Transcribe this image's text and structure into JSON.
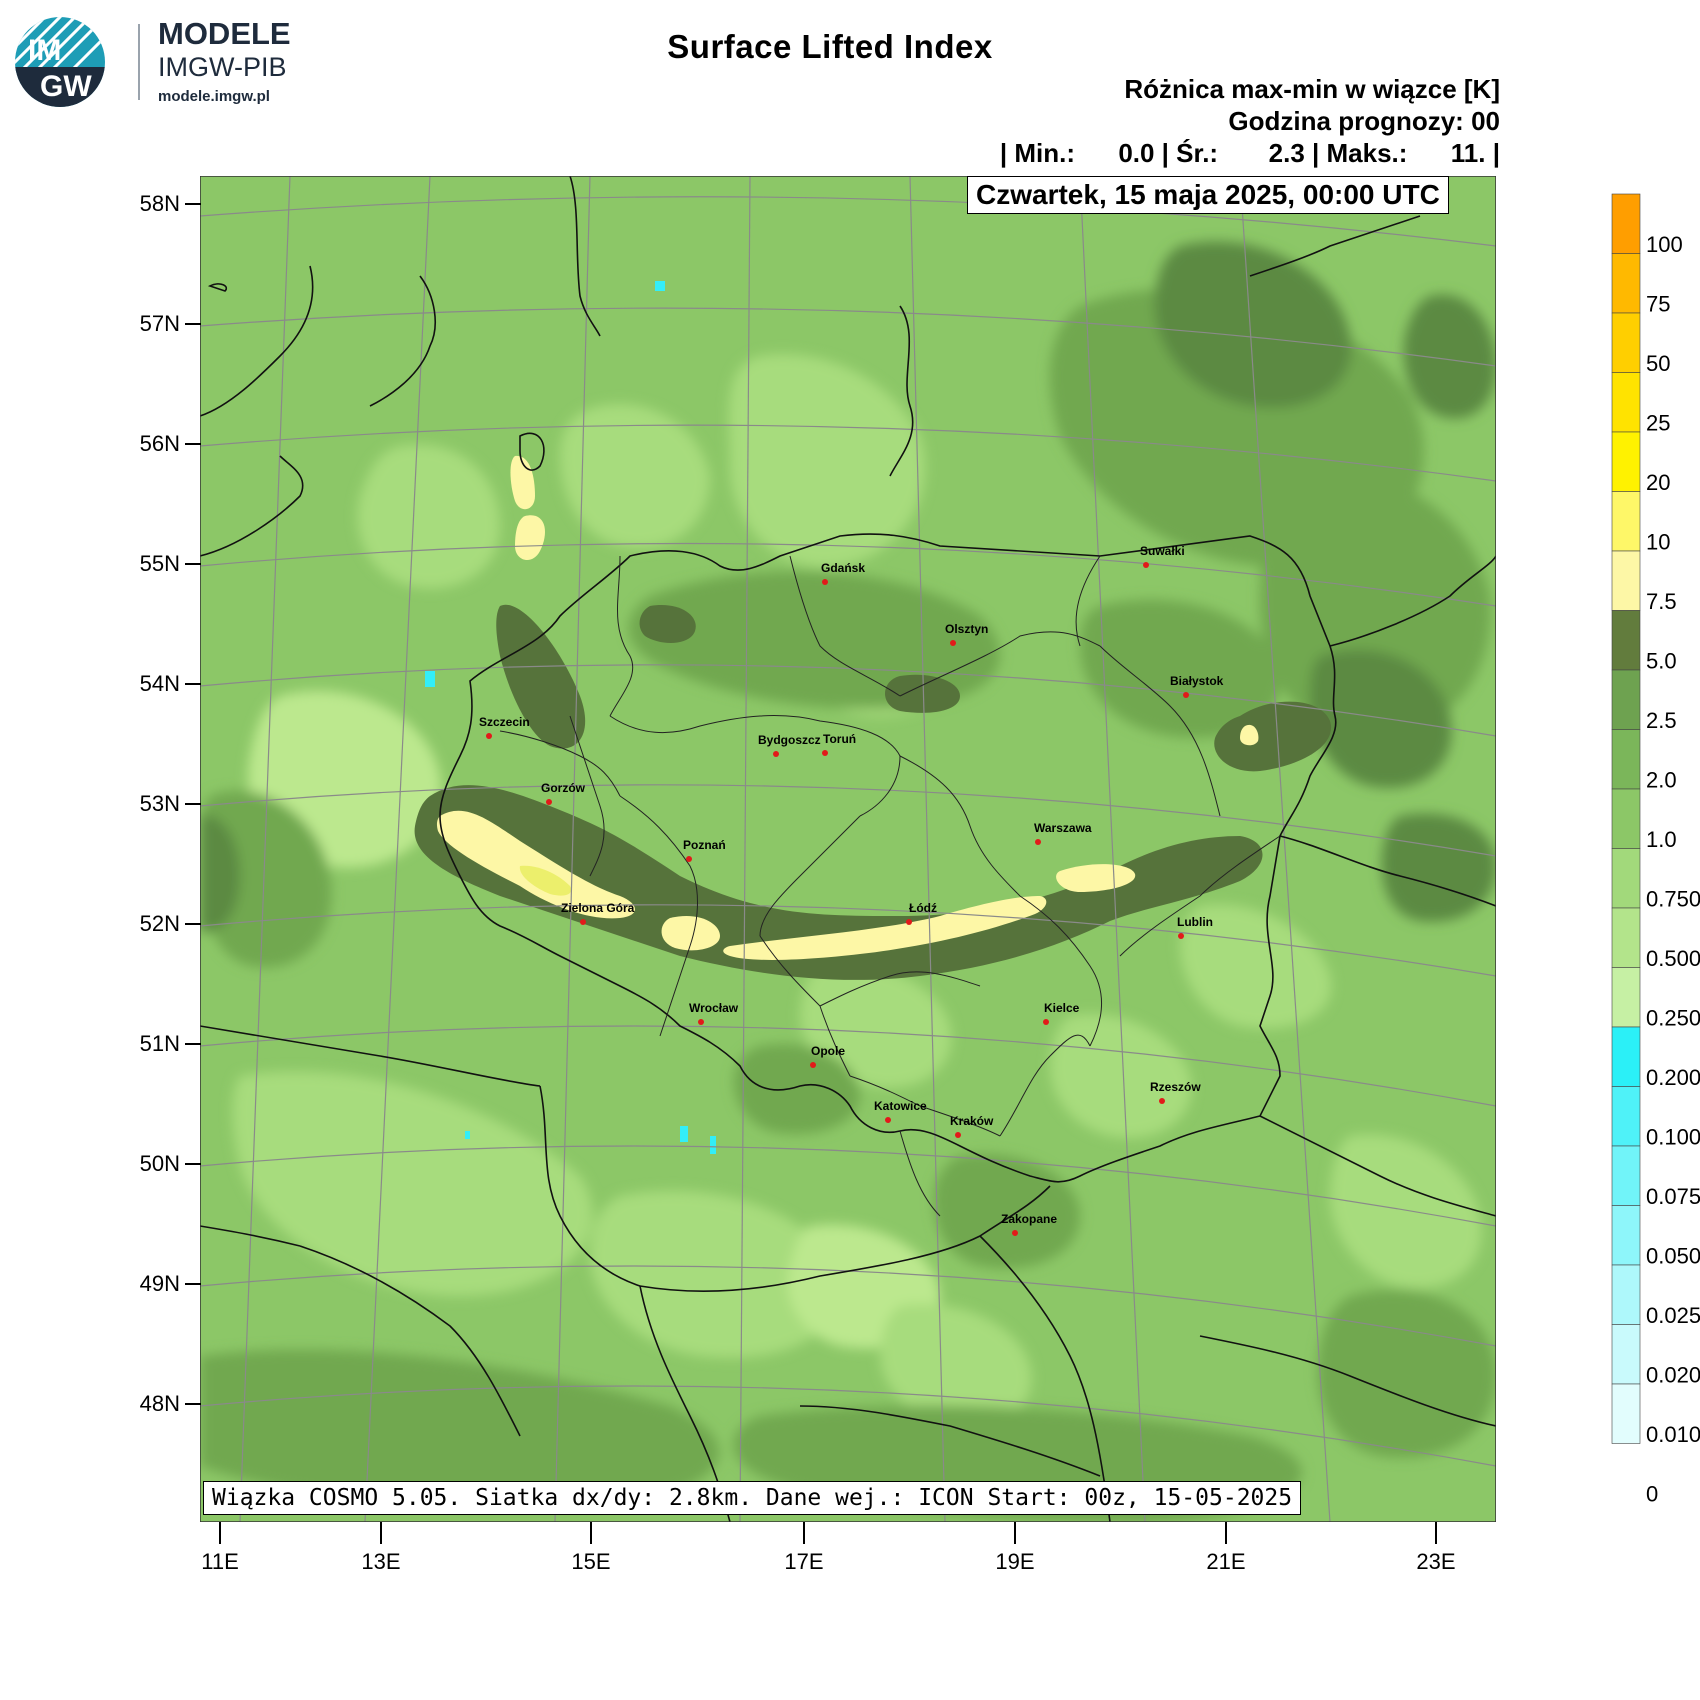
{
  "header": {
    "brand": "MODELE",
    "org": "IMGW-PIB",
    "url": "modele.imgw.pl",
    "logo_text_top": "IM",
    "logo_text_bottom": "GW"
  },
  "title": "Surface Lifted Index",
  "subtitle_line1": "Różnica max-min w wiązce [K]",
  "subtitle_line2": "Godzina prognozy: 00",
  "stats_line": "| Min.:      0.0 | Śr.:       2.3 | Maks.:      11. |",
  "date_label": "Czwartek, 15 maja 2025, 00:00 UTC",
  "footer_note": "Wiązka COSMO 5.05. Siatka dx/dy: 2.8km. Dane wej.: ICON Start: 00z, 15-05-2025",
  "map": {
    "lat_ticks": [
      "58N",
      "57N",
      "56N",
      "55N",
      "54N",
      "53N",
      "52N",
      "51N",
      "50N",
      "49N",
      "48N"
    ],
    "lon_ticks": [
      "11E",
      "13E",
      "15E",
      "17E",
      "19E",
      "21E",
      "23E"
    ],
    "cities": [
      {
        "name": "Gdańsk"
      },
      {
        "name": "Suwałki"
      },
      {
        "name": "Olsztyn"
      },
      {
        "name": "Białystok"
      },
      {
        "name": "Szczecin"
      },
      {
        "name": "Bydgoszcz"
      },
      {
        "name": "Toruń"
      },
      {
        "name": "Gorzów"
      },
      {
        "name": "Warszawa"
      },
      {
        "name": "Poznań"
      },
      {
        "name": "Zielona Góra"
      },
      {
        "name": "Łódź"
      },
      {
        "name": "Lublin"
      },
      {
        "name": "Wrocław"
      },
      {
        "name": "Kielce"
      },
      {
        "name": "Opole"
      },
      {
        "name": "Rzeszów"
      },
      {
        "name": "Katowice"
      },
      {
        "name": "Kraków"
      },
      {
        "name": "Zakopane"
      }
    ],
    "colors": {
      "base": "#8cc767",
      "light": "#a7dc7d",
      "lighter": "#bce88e",
      "medium": "#71a84f",
      "dark": "#5c8a43",
      "darkest": "#56733b",
      "cream": "#fdf7a6",
      "yellow": "#ecef6c",
      "cyan": "#33eef8",
      "city_dot": "#e21a1a"
    }
  },
  "legend": {
    "labels": [
      "100",
      "75",
      "50",
      "25",
      "20",
      "10",
      "7.5",
      "5.0",
      "2.5",
      "2.0",
      "1.0",
      "0.750",
      "0.500",
      "0.250",
      "0.200",
      "0.100",
      "0.075",
      "0.050",
      "0.025",
      "0.020",
      "0.010",
      "0"
    ],
    "colors": [
      "#ff9e00",
      "#ffb900",
      "#ffcf00",
      "#ffe300",
      "#fff200",
      "#fef768",
      "#fdf7a6",
      "#627c3d",
      "#6ea250",
      "#7bb65a",
      "#8cc767",
      "#a2d97b",
      "#b3e48b",
      "#c6f0a4",
      "#2bf0f7",
      "#4ff2f8",
      "#71f4f9",
      "#8ef6fa",
      "#aef8fb",
      "#c9fafc",
      "#e2fdfd",
      "#ffffff"
    ]
  }
}
